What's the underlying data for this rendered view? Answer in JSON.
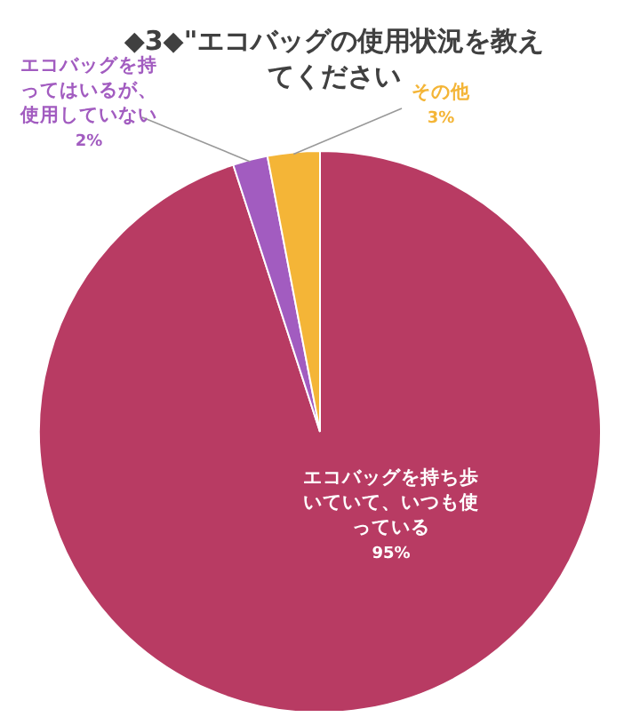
{
  "chart_data": {
    "type": "pie",
    "title": "◆3◆\"エコバッグの使用状況を教えてください",
    "categories": [
      "エコバッグを持ち歩いていて、いつも使っている",
      "エコバッグを持ってはいるが、使用していない",
      "その他"
    ],
    "values": [
      95,
      2,
      3
    ],
    "colors": [
      "#b83b63",
      "#a25cc0",
      "#f4b537"
    ],
    "value_labels": [
      "95%",
      "2%",
      "3%"
    ]
  }
}
